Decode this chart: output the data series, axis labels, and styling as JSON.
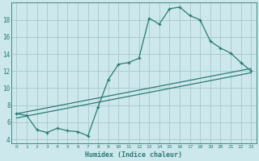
{
  "xlabel": "Humidex (Indice chaleur)",
  "bg_color": "#cde8ed",
  "grid_color": "#aacccc",
  "line_color": "#2a7a72",
  "xlim": [
    -0.5,
    23.5
  ],
  "ylim": [
    3.5,
    20.0
  ],
  "yticks": [
    4,
    6,
    8,
    10,
    12,
    14,
    16,
    18
  ],
  "xticks": [
    0,
    1,
    2,
    3,
    4,
    5,
    6,
    7,
    8,
    9,
    10,
    11,
    12,
    13,
    14,
    15,
    16,
    17,
    18,
    19,
    20,
    21,
    22,
    23
  ],
  "line1_x": [
    0,
    1,
    2,
    3,
    4,
    5,
    6,
    7,
    8,
    9,
    10,
    11,
    12,
    13,
    14,
    15,
    16,
    17,
    18,
    19,
    20,
    21,
    22,
    23
  ],
  "line1_y": [
    7.0,
    6.8,
    5.1,
    4.8,
    5.3,
    5.0,
    4.9,
    4.4,
    7.8,
    11.0,
    12.8,
    13.0,
    13.5,
    18.2,
    17.5,
    19.3,
    19.5,
    18.5,
    18.0,
    15.5,
    14.7,
    14.1,
    13.0,
    12.0
  ],
  "line2_x": [
    0,
    23
  ],
  "line2_y": [
    7.0,
    12.3
  ],
  "line3_x": [
    0,
    23
  ],
  "line3_y": [
    6.5,
    11.8
  ]
}
